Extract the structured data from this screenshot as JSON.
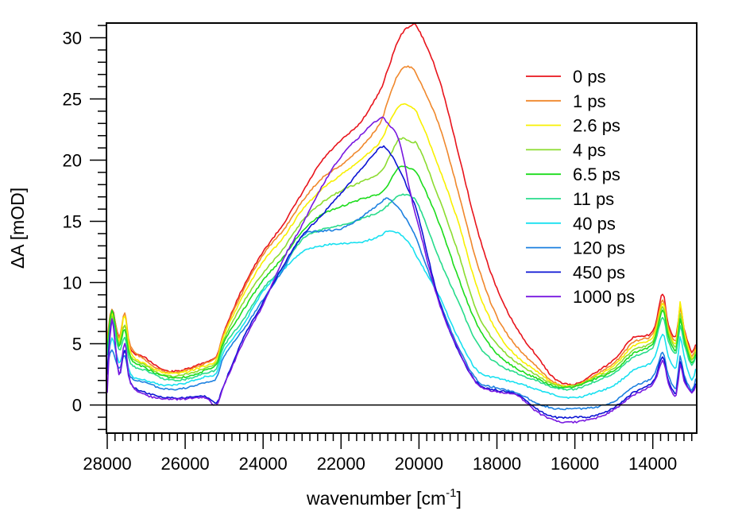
{
  "chart_data": {
    "type": "line",
    "title": "",
    "xlabel": "wavenumber [cm",
    "xlabel_superscript": "-1",
    "xlabel_suffix": "]",
    "ylabel": "ΔA [mOD]",
    "xlim": [
      28020,
      12873
    ],
    "ylim": [
      -2.3,
      31.2
    ],
    "x_reversed": true,
    "grid": false,
    "legend_position": "top-right",
    "x_ticks": [
      28000,
      26000,
      24000,
      22000,
      20000,
      18000,
      16000,
      14000
    ],
    "x_tick_labels": [
      "28000",
      "26000",
      "24000",
      "22000",
      "20000",
      "18000",
      "16000",
      "14000"
    ],
    "x_minor_step": 200,
    "y_ticks": [
      0,
      5,
      10,
      15,
      20,
      25,
      30
    ],
    "y_tick_labels": [
      "0",
      "5",
      "10",
      "15",
      "20",
      "25",
      "30"
    ],
    "y_minor_step": 1,
    "zero_line": 0,
    "x": [
      28000,
      27880,
      27700,
      27550,
      27400,
      27000,
      26500,
      26000,
      25500,
      25200,
      25000,
      24500,
      24000,
      23500,
      23000,
      22500,
      22000,
      21500,
      21000,
      20800,
      20500,
      20200,
      20000,
      19500,
      19000,
      18500,
      18000,
      17500,
      17000,
      16500,
      16000,
      15500,
      15000,
      14500,
      14000,
      13750,
      13600,
      13400,
      13300,
      13200,
      13000,
      12900
    ],
    "series": [
      {
        "name": "0 ps",
        "color": "#e8141c",
        "values": [
          5.0,
          7.8,
          5.5,
          6.5,
          4.5,
          3.8,
          2.8,
          2.9,
          3.5,
          4.0,
          6.0,
          9.7,
          12.5,
          14.7,
          17.3,
          19.9,
          21.6,
          23.1,
          25.7,
          27.4,
          30.0,
          31.0,
          30.6,
          26.8,
          20.7,
          14.3,
          9.5,
          6.3,
          4.1,
          2.1,
          1.7,
          2.6,
          3.7,
          5.5,
          6.0,
          9.1,
          6.5,
          5.6,
          8.2,
          6.3,
          4.3,
          5.0
        ]
      },
      {
        "name": "1 ps",
        "color": "#f0882c",
        "values": [
          5.5,
          7.8,
          5.5,
          7.5,
          4.8,
          3.6,
          2.7,
          2.8,
          3.4,
          3.9,
          5.9,
          9.4,
          12.3,
          14.2,
          16.6,
          18.5,
          19.6,
          21.0,
          23.0,
          24.8,
          27.2,
          27.6,
          26.6,
          23.0,
          17.5,
          11.5,
          7.2,
          4.8,
          3.2,
          1.8,
          1.6,
          2.4,
          3.4,
          5.1,
          5.8,
          8.6,
          6.3,
          5.3,
          8.0,
          6.0,
          4.0,
          4.8
        ]
      },
      {
        "name": "2.6 ps",
        "color": "#f8f000",
        "values": [
          5.0,
          7.5,
          5.2,
          7.3,
          4.3,
          3.3,
          2.6,
          2.7,
          3.2,
          3.7,
          5.7,
          9.0,
          11.7,
          13.6,
          15.9,
          17.6,
          18.8,
          20.0,
          21.5,
          22.8,
          24.5,
          24.3,
          23.5,
          19.5,
          15.0,
          9.5,
          6.0,
          4.0,
          2.8,
          1.7,
          1.6,
          2.3,
          3.2,
          4.8,
          5.5,
          8.3,
          6.1,
          5.1,
          8.4,
          6.2,
          3.8,
          4.6
        ]
      },
      {
        "name": "4 ps",
        "color": "#8cdc30",
        "values": [
          4.5,
          7.2,
          5.0,
          6.5,
          4.0,
          3.2,
          2.4,
          2.5,
          3.0,
          3.5,
          5.4,
          8.4,
          10.8,
          12.7,
          15.0,
          16.5,
          17.5,
          18.2,
          19.0,
          20.0,
          21.7,
          21.5,
          21.0,
          17.0,
          12.5,
          7.5,
          5.0,
          3.5,
          2.5,
          1.6,
          1.6,
          2.2,
          3.0,
          4.5,
          5.2,
          8.0,
          5.9,
          4.8,
          7.5,
          5.7,
          3.6,
          4.4
        ]
      },
      {
        "name": "6.5 ps",
        "color": "#1cdc1c",
        "values": [
          4.5,
          7.8,
          4.8,
          6.2,
          3.8,
          3.0,
          2.3,
          2.3,
          2.8,
          3.3,
          5.2,
          7.8,
          10.2,
          12.0,
          14.2,
          15.5,
          16.2,
          16.8,
          17.3,
          18.0,
          19.4,
          19.3,
          18.6,
          15.0,
          10.5,
          6.5,
          4.2,
          3.0,
          2.2,
          1.5,
          1.5,
          2.1,
          2.8,
          4.2,
          5.0,
          7.7,
          5.6,
          4.5,
          7.0,
          5.4,
          3.4,
          4.2
        ]
      },
      {
        "name": "11 ps",
        "color": "#28dc8c",
        "values": [
          4.0,
          7.0,
          4.5,
          5.5,
          3.4,
          2.8,
          2.1,
          2.1,
          2.6,
          3.0,
          4.8,
          7.0,
          9.5,
          11.2,
          13.5,
          14.3,
          14.7,
          15.2,
          15.8,
          16.3,
          17.1,
          17.0,
          16.2,
          12.1,
          8.5,
          5.0,
          3.4,
          2.6,
          2.0,
          1.4,
          1.3,
          1.9,
          2.6,
          3.9,
          4.7,
          7.2,
          5.2,
          4.2,
          6.5,
          5.0,
          3.2,
          4.0
        ]
      },
      {
        "name": "40 ps",
        "color": "#18e0f0",
        "values": [
          3.0,
          5.5,
          3.5,
          4.5,
          2.5,
          2.0,
          1.6,
          1.8,
          2.3,
          2.6,
          4.4,
          6.6,
          9.3,
          11.0,
          12.5,
          13.0,
          13.2,
          13.3,
          13.8,
          14.2,
          14.0,
          13.0,
          11.8,
          9.0,
          5.5,
          2.8,
          2.2,
          1.8,
          1.3,
          0.8,
          0.6,
          1.0,
          1.6,
          2.8,
          3.6,
          5.8,
          4.0,
          3.0,
          5.5,
          4.0,
          2.0,
          3.0
        ]
      },
      {
        "name": "120 ps",
        "color": "#1c80e0",
        "values": [
          3.0,
          4.5,
          3.0,
          4.0,
          2.3,
          1.8,
          1.3,
          1.4,
          1.8,
          2.2,
          4.0,
          6.2,
          8.6,
          11.0,
          13.8,
          14.2,
          14.4,
          15.3,
          16.5,
          16.9,
          16.0,
          14.5,
          13.0,
          8.7,
          4.8,
          2.0,
          1.4,
          1.0,
          0.2,
          -0.3,
          -0.3,
          -0.2,
          0.3,
          1.5,
          2.3,
          4.3,
          2.4,
          1.4,
          4.0,
          2.5,
          1.2,
          2.2
        ]
      },
      {
        "name": "450 ps",
        "color": "#0c14d4",
        "values": [
          2.5,
          7.0,
          2.5,
          4.5,
          1.8,
          1.0,
          0.6,
          0.6,
          0.7,
          0.2,
          1.7,
          5.5,
          8.4,
          11.3,
          13.8,
          15.5,
          17.3,
          19.2,
          21.0,
          20.8,
          19.2,
          17.0,
          15.2,
          8.7,
          4.5,
          1.8,
          1.2,
          0.9,
          -0.3,
          -1.0,
          -1.0,
          -0.9,
          -0.2,
          1.0,
          1.9,
          3.9,
          2.0,
          1.0,
          3.6,
          2.2,
          1.0,
          1.8
        ]
      },
      {
        "name": "1000 ps",
        "color": "#7818e0",
        "values": [
          1.0,
          7.0,
          2.5,
          5.0,
          1.8,
          0.8,
          0.5,
          0.5,
          0.6,
          0.0,
          1.6,
          5.2,
          8.2,
          11.8,
          14.7,
          17.8,
          20.3,
          22.0,
          23.4,
          23.0,
          21.5,
          17.0,
          14.5,
          8.5,
          4.6,
          1.7,
          1.1,
          0.8,
          -0.5,
          -1.3,
          -1.4,
          -1.1,
          -0.4,
          0.8,
          1.7,
          3.6,
          1.8,
          0.8,
          3.3,
          2.0,
          1.0,
          1.6
        ]
      }
    ]
  }
}
